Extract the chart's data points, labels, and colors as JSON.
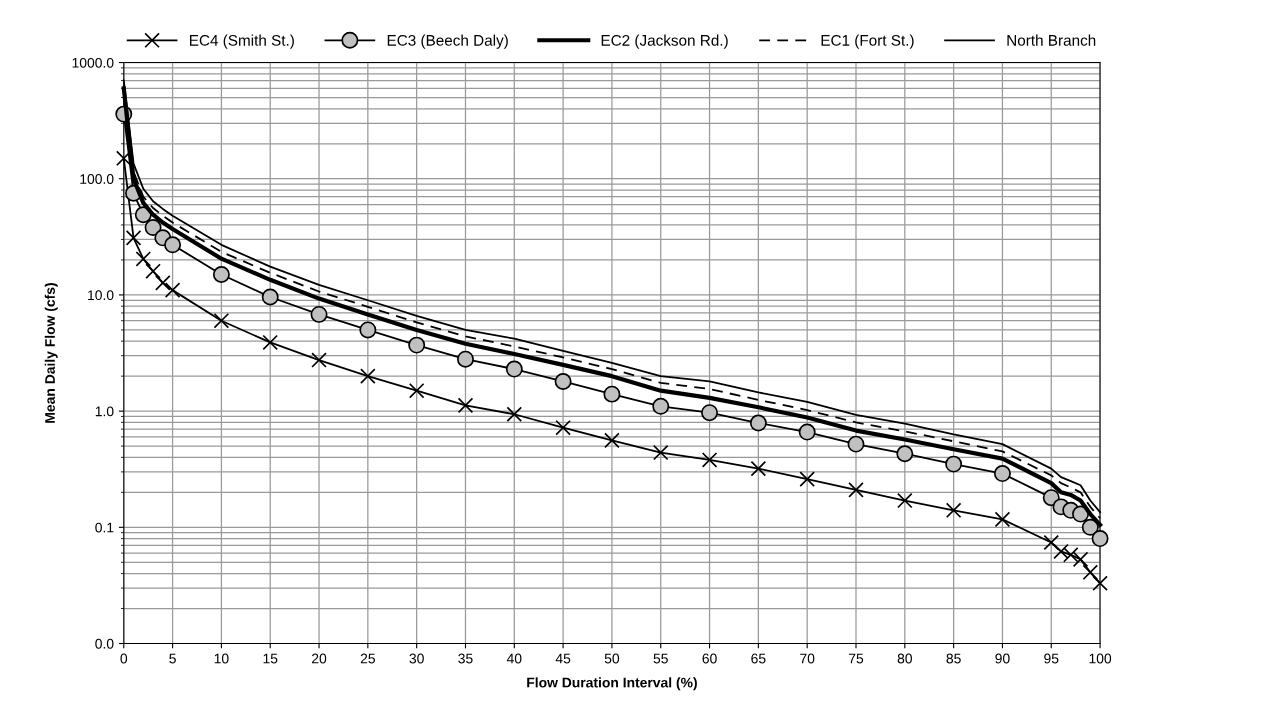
{
  "chart_data": {
    "type": "line",
    "xlabel": "Flow Duration Interval (%)",
    "ylabel": "Mean Daily Flow (cfs)",
    "log": "y",
    "grid": true,
    "legend": "top",
    "x": [
      0,
      1,
      2,
      3,
      4,
      5,
      10,
      15,
      20,
      25,
      30,
      35,
      40,
      45,
      50,
      55,
      60,
      65,
      70,
      75,
      80,
      85,
      90,
      95,
      96,
      97,
      98,
      99,
      100
    ],
    "xlim": [
      0,
      100
    ],
    "xticks": [
      0,
      5,
      10,
      15,
      20,
      25,
      30,
      35,
      40,
      45,
      50,
      55,
      60,
      65,
      70,
      75,
      80,
      85,
      90,
      95,
      100
    ],
    "ylim": [
      0.01,
      1000
    ],
    "yticks": [
      {
        "value": 0.01,
        "label": "0.0"
      },
      {
        "value": 0.1,
        "label": "0.1"
      },
      {
        "value": 1,
        "label": "1.0"
      },
      {
        "value": 10,
        "label": "10.0"
      },
      {
        "value": 100,
        "label": "100.0"
      },
      {
        "value": 1000,
        "label": "1000.0"
      }
    ],
    "series": [
      {
        "name": "EC4 (Smith St.)",
        "color": "#000000",
        "marker": "cross",
        "line_style": "solid",
        "values": [
          150,
          31,
          20.4,
          16,
          12.7,
          11,
          6.0,
          3.9,
          2.75,
          2.0,
          1.5,
          1.12,
          0.94,
          0.72,
          0.56,
          0.44,
          0.38,
          0.32,
          0.26,
          0.21,
          0.17,
          0.14,
          0.117,
          0.074,
          0.062,
          0.058,
          0.053,
          0.041,
          0.033
        ]
      },
      {
        "name": "EC3 (Beech Daly)",
        "color": "#000000",
        "marker": "circle",
        "line_style": "solid",
        "values": [
          360,
          75,
          49,
          38,
          31,
          27,
          15,
          9.6,
          6.8,
          5.0,
          3.7,
          2.8,
          2.3,
          1.8,
          1.4,
          1.1,
          0.97,
          0.79,
          0.66,
          0.52,
          0.43,
          0.35,
          0.29,
          0.18,
          0.15,
          0.14,
          0.13,
          0.1,
          0.08
        ]
      },
      {
        "name": "EC2 (Jackson Rd.)",
        "color": "#000000",
        "marker": "none",
        "line_style": "solid",
        "values": [
          600,
          100,
          62,
          49,
          42,
          37,
          20.5,
          13.5,
          9.3,
          6.8,
          5.0,
          3.8,
          3.1,
          2.5,
          2.0,
          1.5,
          1.3,
          1.08,
          0.88,
          0.68,
          0.57,
          0.47,
          0.39,
          0.24,
          0.2,
          0.19,
          0.17,
          0.13,
          0.105
        ]
      },
      {
        "name": "EC1 (Fort St.)",
        "color": "#000000",
        "marker": "none",
        "line_style": "dashed",
        "values": [
          650,
          115,
          70,
          56,
          48,
          42,
          23.5,
          15.5,
          10.7,
          7.9,
          5.8,
          4.4,
          3.6,
          2.9,
          2.3,
          1.75,
          1.55,
          1.25,
          1.02,
          0.8,
          0.67,
          0.55,
          0.45,
          0.28,
          0.24,
          0.22,
          0.2,
          0.15,
          0.12
        ]
      },
      {
        "name": "North Branch",
        "color": "#000000",
        "marker": "none",
        "line_style": "solid",
        "values": [
          700,
          135,
          82,
          64,
          55,
          48,
          27,
          17.5,
          12.2,
          9.0,
          6.6,
          5.0,
          4.2,
          3.3,
          2.6,
          2.0,
          1.8,
          1.45,
          1.2,
          0.93,
          0.78,
          0.63,
          0.52,
          0.32,
          0.27,
          0.25,
          0.23,
          0.17,
          0.135
        ]
      }
    ]
  }
}
